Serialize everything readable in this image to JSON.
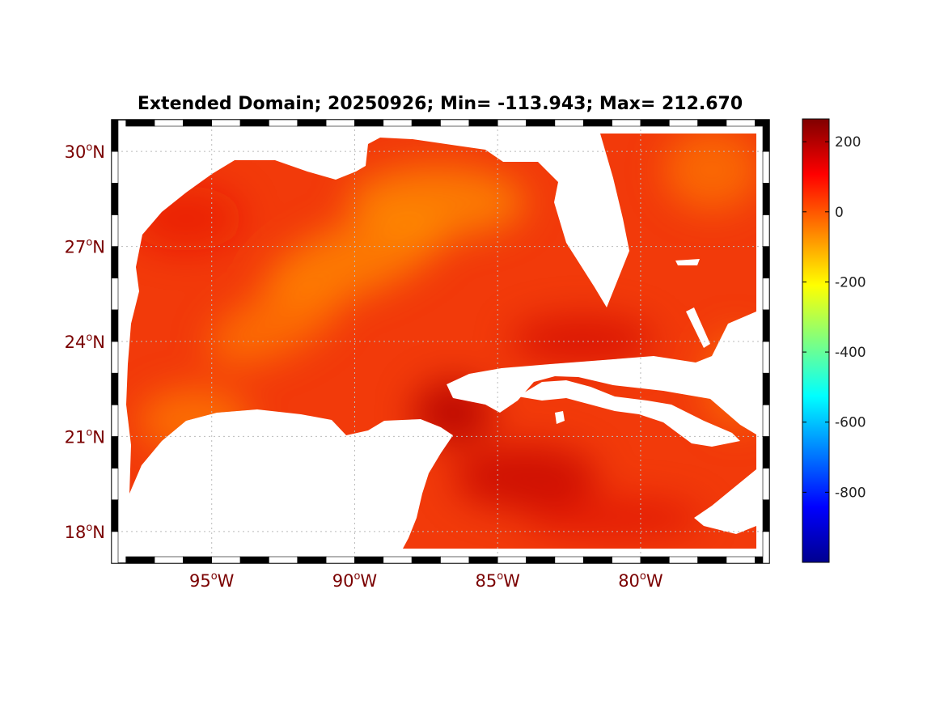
{
  "title": "Extended Domain; 20250926; Min= -113.943; Max= 212.670",
  "map": {
    "lon_range": [
      -98.5,
      -75.5
    ],
    "lat_range": [
      17.0,
      31.0
    ],
    "lat_ticks": [
      {
        "value": 30,
        "num": "30",
        "hemi": "N"
      },
      {
        "value": 27,
        "num": "27",
        "hemi": "N"
      },
      {
        "value": 24,
        "num": "24",
        "hemi": "N"
      },
      {
        "value": 21,
        "num": "21",
        "hemi": "N"
      },
      {
        "value": 18,
        "num": "18",
        "hemi": "N"
      }
    ],
    "lon_ticks": [
      {
        "value": -95,
        "num": "95",
        "hemi": "W"
      },
      {
        "value": -90,
        "num": "90",
        "hemi": "W"
      },
      {
        "value": -85,
        "num": "85",
        "hemi": "W"
      },
      {
        "value": -80,
        "num": "80",
        "hemi": "W"
      }
    ],
    "degree_symbol": "o",
    "grid": true,
    "land_color": "#ffffff",
    "ocean_base_color": "#f23a0a"
  },
  "colorbar": {
    "range": [
      -1000,
      265
    ],
    "ticks": [
      {
        "value": 200,
        "label": "200"
      },
      {
        "value": 0,
        "label": "0"
      },
      {
        "value": -200,
        "label": "-200"
      },
      {
        "value": -400,
        "label": "-400"
      },
      {
        "value": -600,
        "label": "-600"
      },
      {
        "value": -800,
        "label": "-800"
      }
    ],
    "colormap": "jet",
    "placement": "right"
  }
}
